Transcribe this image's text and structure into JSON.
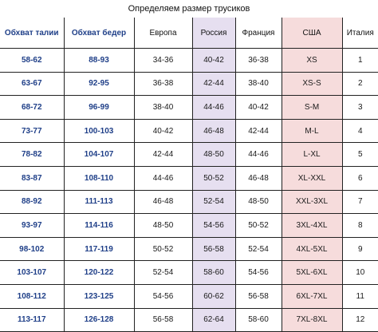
{
  "title": "Определяем размер трусиков",
  "headers": {
    "waist": "Обхват талии",
    "hips": "Обхват бедер",
    "europe": "Европа",
    "russia": "Россия",
    "france": "Франция",
    "usa": "США",
    "italy": "Италия"
  },
  "colors": {
    "header_blue": "#1f3f88",
    "russia_bg": "#e6dff0",
    "usa_bg": "#f6dcdc"
  },
  "rows": [
    [
      "58-62",
      "88-93",
      "34-36",
      "40-42",
      "36-38",
      "XS",
      "1"
    ],
    [
      "63-67",
      "92-95",
      "36-38",
      "42-44",
      "38-40",
      "XS-S",
      "2"
    ],
    [
      "68-72",
      "96-99",
      "38-40",
      "44-46",
      "40-42",
      "S-M",
      "3"
    ],
    [
      "73-77",
      "100-103",
      "40-42",
      "46-48",
      "42-44",
      "M-L",
      "4"
    ],
    [
      "78-82",
      "104-107",
      "42-44",
      "48-50",
      "44-46",
      "L-XL",
      "5"
    ],
    [
      "83-87",
      "108-110",
      "44-46",
      "50-52",
      "46-48",
      "XL-XXL",
      "6"
    ],
    [
      "88-92",
      "111-113",
      "46-48",
      "52-54",
      "48-50",
      "XXL-3XL",
      "7"
    ],
    [
      "93-97",
      "114-116",
      "48-50",
      "54-56",
      "50-52",
      "3XL-4XL",
      "8"
    ],
    [
      "98-102",
      "117-119",
      "50-52",
      "56-58",
      "52-54",
      "4XL-5XL",
      "9"
    ],
    [
      "103-107",
      "120-122",
      "52-54",
      "58-60",
      "54-56",
      "5XL-6XL",
      "10"
    ],
    [
      "108-112",
      "123-125",
      "54-56",
      "60-62",
      "56-58",
      "6XL-7XL",
      "11"
    ],
    [
      "113-117",
      "126-128",
      "56-58",
      "62-64",
      "58-60",
      "7XL-8XL",
      "12"
    ]
  ]
}
